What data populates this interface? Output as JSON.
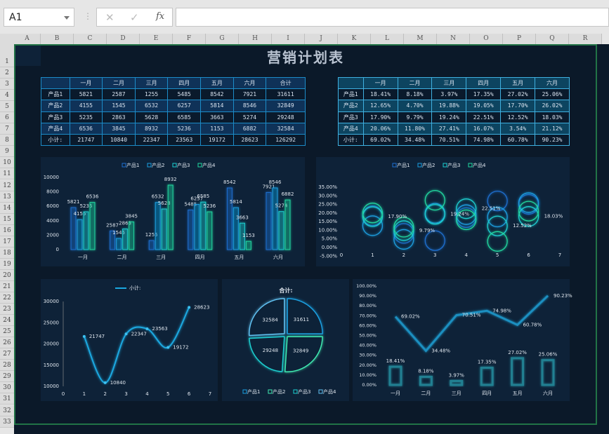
{
  "toolbar": {
    "name_box": "A1",
    "cancel_icon": "✕",
    "enter_icon": "✓",
    "fx_label": "fx",
    "formula": ""
  },
  "columns": [
    "A",
    "B",
    "C",
    "D",
    "E",
    "F",
    "G",
    "H",
    "I",
    "J",
    "K",
    "L",
    "M",
    "N",
    "O",
    "P",
    "Q",
    "R"
  ],
  "rows": [
    "1",
    "2",
    "3",
    "4",
    "5",
    "6",
    "7",
    "8",
    "9",
    "10",
    "11",
    "12",
    "13",
    "14",
    "15",
    "16",
    "17",
    "18",
    "19",
    "20",
    "21",
    "22",
    "23",
    "24",
    "25",
    "26",
    "27",
    "28",
    "29",
    "30",
    "31",
    "32",
    "33"
  ],
  "title": "营销计划表",
  "months": [
    "一月",
    "二月",
    "三月",
    "四月",
    "五月",
    "六月"
  ],
  "products": [
    "产品1",
    "产品2",
    "产品3",
    "产品4"
  ],
  "subtotal_label": "小计:",
  "total_label": "合计",
  "values": [
    [
      5821,
      2587,
      1255,
      5485,
      8542,
      7921
    ],
    [
      4155,
      1545,
      6532,
      6257,
      5814,
      8546
    ],
    [
      5235,
      2863,
      5628,
      6585,
      3663,
      5274
    ],
    [
      6536,
      3845,
      8932,
      5236,
      1153,
      6882
    ]
  ],
  "row_totals": [
    31611,
    32849,
    29248,
    32584
  ],
  "subtotals": [
    21747,
    10840,
    22347,
    23563,
    19172,
    28623
  ],
  "grand_total": 126292,
  "percent_table": [
    [
      "18.41%",
      "8.18%",
      "3.97%",
      "17.35%",
      "27.02%",
      "25.06%"
    ],
    [
      "12.65%",
      "4.70%",
      "19.88%",
      "19.05%",
      "17.70%",
      "26.02%"
    ],
    [
      "17.90%",
      "9.79%",
      "19.24%",
      "22.51%",
      "12.52%",
      "18.03%"
    ],
    [
      "20.06%",
      "11.80%",
      "27.41%",
      "16.07%",
      "3.54%",
      "21.12%"
    ]
  ],
  "percent_subtotals": [
    "69.02%",
    "34.48%",
    "70.51%",
    "74.98%",
    "60.78%",
    "90.23%"
  ],
  "colors": {
    "p1": "#1e6fd0",
    "p2": "#1a9fe0",
    "p3": "#1ccfd0",
    "p4": "#20d8a0",
    "sheet_bg": "#0b1929",
    "panel_bg": "#0e2238",
    "selection": "#217346"
  },
  "chart_data": [
    {
      "type": "bar",
      "categories": [
        "一月",
        "二月",
        "三月",
        "四月",
        "五月",
        "六月"
      ],
      "series": [
        {
          "name": "产品1",
          "values": [
            5821,
            2587,
            1255,
            5485,
            8542,
            7921
          ]
        },
        {
          "name": "产品2",
          "values": [
            4155,
            1545,
            6532,
            6257,
            5814,
            8546
          ]
        },
        {
          "name": "产品3",
          "values": [
            5235,
            2863,
            5628,
            6585,
            3663,
            5274
          ]
        },
        {
          "name": "产品4",
          "values": [
            6536,
            3845,
            8932,
            5236,
            1153,
            6882
          ]
        }
      ],
      "ylim": [
        0,
        10000
      ],
      "yticks": [
        0,
        2000,
        4000,
        6000,
        8000,
        10000
      ],
      "legend": "top",
      "data_labels": true
    },
    {
      "type": "scatter",
      "x": [
        1,
        2,
        3,
        4,
        5,
        6
      ],
      "series": [
        {
          "name": "产品1",
          "values": [
            18.41,
            8.18,
            3.97,
            17.35,
            27.02,
            25.06
          ]
        },
        {
          "name": "产品2",
          "values": [
            12.65,
            4.7,
            19.88,
            19.05,
            17.7,
            26.02
          ]
        },
        {
          "name": "产品3",
          "values": [
            17.9,
            9.79,
            19.24,
            22.51,
            12.52,
            18.03
          ]
        },
        {
          "name": "产品4",
          "values": [
            20.06,
            11.8,
            27.41,
            16.07,
            3.54,
            21.12
          ]
        }
      ],
      "labels": [
        "17.90%",
        "9.79%",
        "19.24%",
        "22.51%",
        "12.52%",
        "18.03%"
      ],
      "xlim": [
        0,
        7
      ],
      "ylim": [
        -5,
        35
      ],
      "yticks": [
        "-5.00%",
        "0.00%",
        "5.00%",
        "10.00%",
        "15.00%",
        "20.00%",
        "25.00%",
        "30.00%",
        "35.00%"
      ],
      "legend": "top"
    },
    {
      "type": "line",
      "series": [
        {
          "name": "小计:",
          "x": [
            1,
            2,
            3,
            4,
            5,
            6
          ],
          "values": [
            21747,
            10840,
            22347,
            23563,
            19172,
            28623
          ]
        }
      ],
      "xlim": [
        0,
        7
      ],
      "ylim": [
        10000,
        30000
      ],
      "yticks": [
        10000,
        15000,
        20000,
        25000,
        30000
      ],
      "legend": "top",
      "smooth": true
    },
    {
      "type": "pie",
      "title": "合计:",
      "categories": [
        "产品1",
        "产品2",
        "产品3",
        "产品4"
      ],
      "values": [
        31611,
        32849,
        29248,
        32584
      ],
      "colors": [
        "#1a9fe0",
        "#40e8b0",
        "#1ccfd0",
        "#60c0f0"
      ],
      "legend": "bottom"
    },
    {
      "type": "bar",
      "categories": [
        "一月",
        "二月",
        "三月",
        "四月",
        "五月",
        "六月"
      ],
      "series": [
        {
          "name": "产品1",
          "values": [
            18.41,
            8.18,
            3.97,
            17.35,
            27.02,
            25.06
          ],
          "mark": "bar"
        },
        {
          "name": "小计:",
          "values": [
            69.02,
            34.48,
            70.51,
            74.98,
            60.78,
            90.23
          ],
          "mark": "line"
        }
      ],
      "ylim": [
        0,
        100
      ],
      "yticks": [
        "0.00%",
        "10.00%",
        "20.00%",
        "30.00%",
        "40.00%",
        "50.00%",
        "60.00%",
        "70.00%",
        "80.00%",
        "90.00%",
        "100.00%"
      ]
    }
  ]
}
